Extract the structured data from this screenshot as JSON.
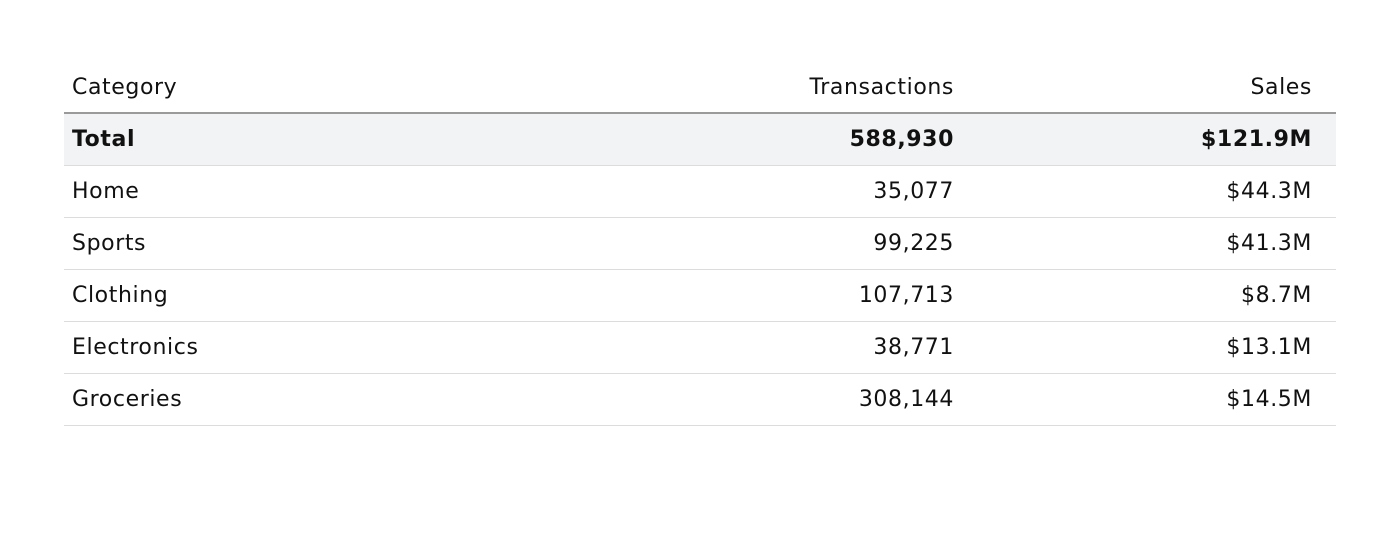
{
  "chart_data": {
    "type": "table",
    "columns": [
      "Category",
      "Transactions",
      "Sales"
    ],
    "total": {
      "category": "Total",
      "transactions": "588,930",
      "sales": "$121.9M"
    },
    "rows": [
      {
        "category": "Home",
        "transactions": "35,077",
        "sales": "$44.3M"
      },
      {
        "category": "Sports",
        "transactions": "99,225",
        "sales": "$41.3M"
      },
      {
        "category": "Clothing",
        "transactions": "107,713",
        "sales": "$8.7M"
      },
      {
        "category": "Electronics",
        "transactions": "38,771",
        "sales": "$13.1M"
      },
      {
        "category": "Groceries",
        "transactions": "308,144",
        "sales": "$14.5M"
      }
    ]
  }
}
